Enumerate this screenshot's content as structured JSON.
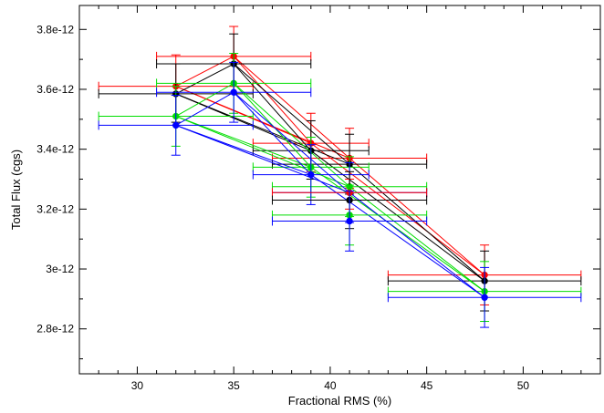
{
  "chart_data": {
    "type": "scatter",
    "xlabel": "Fractional RMS (%)",
    "ylabel": "Total Flux (cgs)",
    "xlim": [
      27,
      54
    ],
    "ylim": [
      2.65e-12,
      3.88e-12
    ],
    "x_ticks": [
      30,
      35,
      40,
      45,
      50
    ],
    "x_tick_labels": [
      "30",
      "35",
      "40",
      "45",
      "50"
    ],
    "y_ticks": [
      2.8e-12,
      3e-12,
      3.2e-12,
      3.4e-12,
      3.6e-12,
      3.8e-12
    ],
    "y_tick_labels": [
      "2.8e-12",
      "3e-12",
      "3.2e-12",
      "3.4e-12",
      "3.6e-12",
      "3.8e-12"
    ],
    "grid": false,
    "legend": "none",
    "connections": [
      [
        0,
        1
      ],
      [
        0,
        2
      ],
      [
        0,
        3
      ],
      [
        1,
        2
      ],
      [
        1,
        3
      ],
      [
        2,
        4
      ],
      [
        3,
        4
      ]
    ],
    "series": [
      {
        "color": "#ff0000",
        "points": [
          {
            "x": 32,
            "y": 3.61e-12,
            "xerr": [
              28,
              36
            ],
            "yerr": [
              3.51e-12,
              3.715e-12
            ]
          },
          {
            "x": 35,
            "y": 3.71e-12,
            "xerr": [
              31,
              39
            ],
            "yerr": [
              3.61e-12,
              3.81e-12
            ]
          },
          {
            "x": 39,
            "y": 3.42e-12,
            "xerr": [
              36,
              42
            ],
            "yerr": [
              3.325e-12,
              3.52e-12
            ]
          },
          {
            "x": 41,
            "y": 3.37e-12,
            "xerr": [
              37,
              45
            ],
            "yerr": [
              3.27e-12,
              3.47e-12
            ]
          },
          {
            "x": 48,
            "y": 2.98e-12,
            "xerr": [
              43,
              53
            ],
            "yerr": [
              2.88e-12,
              3.08e-12
            ]
          }
        ]
      },
      {
        "color": "#000000",
        "points": [
          {
            "x": 32,
            "y": 3.585e-12,
            "xerr": [
              28,
              36
            ],
            "yerr": [
              3.49e-12,
              3.685e-12
            ]
          },
          {
            "x": 35,
            "y": 3.685e-12,
            "xerr": [
              31,
              39
            ],
            "yerr": [
              3.585e-12,
              3.785e-12
            ]
          },
          {
            "x": 39,
            "y": 3.395e-12,
            "xerr": [
              36,
              42
            ],
            "yerr": [
              3.3e-12,
              3.495e-12
            ]
          },
          {
            "x": 41,
            "y": 3.35e-12,
            "xerr": [
              37,
              45
            ],
            "yerr": [
              3.25e-12,
              3.45e-12
            ]
          },
          {
            "x": 48,
            "y": 2.96e-12,
            "xerr": [
              43,
              53
            ],
            "yerr": [
              2.86e-12,
              3.06e-12
            ]
          }
        ]
      },
      {
        "color": "#00dd00",
        "points": [
          {
            "x": 32,
            "y": 3.51e-12,
            "xerr": [
              28,
              36
            ],
            "yerr": [
              3.41e-12,
              3.61e-12
            ]
          },
          {
            "x": 35,
            "y": 3.62e-12,
            "xerr": [
              31,
              39
            ],
            "yerr": [
              3.52e-12,
              3.72e-12
            ]
          },
          {
            "x": 39,
            "y": 3.34e-12,
            "xerr": [
              36,
              42
            ],
            "yerr": [
              3.24e-12,
              3.44e-12
            ]
          },
          {
            "x": 41,
            "y": 3.275e-12,
            "xerr": [
              37,
              45
            ],
            "yerr": [
              3.175e-12,
              3.375e-12
            ]
          },
          {
            "x": 48,
            "y": 2.925e-12,
            "xerr": [
              43,
              53
            ],
            "yerr": [
              2.825e-12,
              3.025e-12
            ]
          }
        ]
      },
      {
        "color": "#0000ff",
        "points": [
          {
            "x": 32,
            "y": 3.48e-12,
            "xerr": [
              28,
              36
            ],
            "yerr": [
              3.38e-12,
              3.58e-12
            ]
          },
          {
            "x": 35,
            "y": 3.59e-12,
            "xerr": [
              31,
              39
            ],
            "yerr": [
              3.49e-12,
              3.69e-12
            ]
          },
          {
            "x": 39,
            "y": 3.315e-12,
            "xerr": [
              36,
              42
            ],
            "yerr": [
              3.215e-12,
              3.415e-12
            ]
          },
          {
            "x": 41,
            "y": 3.255e-12,
            "xerr": [
              37,
              45
            ],
            "yerr": [
              3.155e-12,
              3.355e-12
            ]
          },
          {
            "x": 48,
            "y": 2.905e-12,
            "xerr": [
              43,
              53
            ],
            "yerr": [
              2.805e-12,
              3.005e-12
            ]
          }
        ]
      },
      {
        "color": "#ff0000",
        "points": [
          {
            "x": 41,
            "y": 3.255e-12,
            "xerr": [
              37,
              45
            ],
            "yerr": [
              3.2e-12,
              3.3e-12
            ]
          }
        ]
      },
      {
        "color": "#000000",
        "points": [
          {
            "x": 41,
            "y": 3.23e-12,
            "xerr": [
              37,
              45
            ],
            "yerr": [
              3.135e-12,
              3.325e-12
            ]
          }
        ]
      },
      {
        "color": "#00dd00",
        "points": [
          {
            "x": 41,
            "y": 3.18e-12,
            "xerr": [
              37,
              45
            ],
            "yerr": [
              3.08e-12,
              3.28e-12
            ]
          }
        ]
      },
      {
        "color": "#0000ff",
        "points": [
          {
            "x": 41,
            "y": 3.16e-12,
            "xerr": [
              37,
              45
            ],
            "yerr": [
              3.06e-12,
              3.26e-12
            ]
          }
        ]
      }
    ]
  }
}
